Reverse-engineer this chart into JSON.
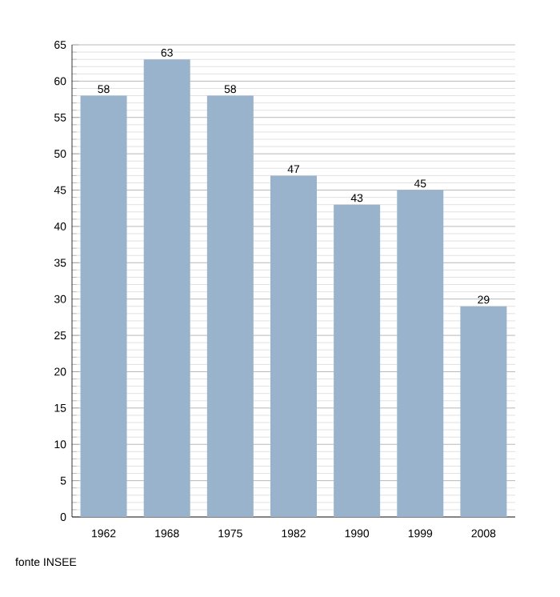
{
  "chart_data": {
    "type": "bar",
    "categories": [
      "1962",
      "1968",
      "1975",
      "1982",
      "1990",
      "1999",
      "2008"
    ],
    "values": [
      58,
      63,
      58,
      47,
      43,
      45,
      29
    ],
    "color": "#9ab3cc",
    "data_labels": true,
    "grid": "y",
    "ylim": [
      0,
      65
    ],
    "yticks": [
      0,
      5,
      10,
      15,
      20,
      25,
      30,
      35,
      40,
      45,
      50,
      55,
      60,
      65
    ],
    "annotations": [
      "fonte INSEE"
    ]
  }
}
